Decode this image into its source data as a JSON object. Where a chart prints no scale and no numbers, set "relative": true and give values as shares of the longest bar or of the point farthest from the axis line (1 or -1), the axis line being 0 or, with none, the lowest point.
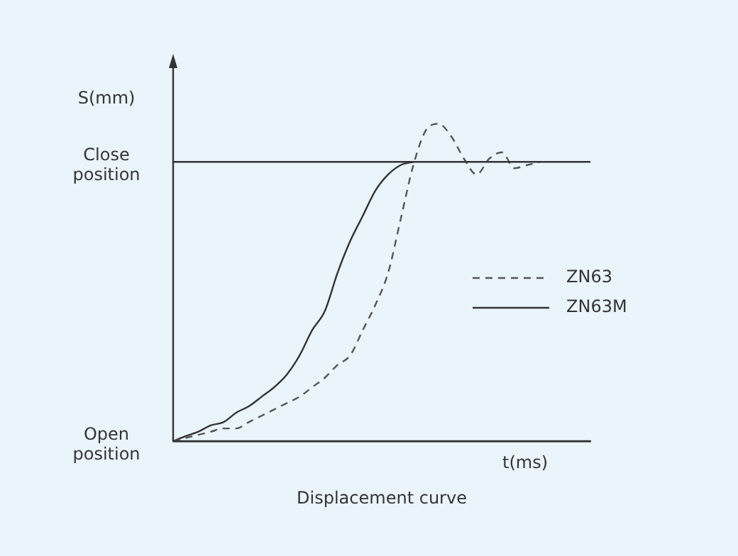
{
  "chart_data": {
    "type": "line",
    "title": "Displacement curve",
    "xlabel": "t(ms)",
    "ylabel": "S(mm)",
    "relative": true,
    "grid": false,
    "legend": "right",
    "marker": "none",
    "categories": [
      null,
      null,
      null,
      null,
      null,
      null,
      null,
      null,
      null,
      null,
      null,
      null,
      null,
      null,
      null,
      null,
      null,
      null,
      null,
      null,
      null,
      null,
      null,
      null,
      null,
      null,
      null,
      null,
      null,
      null,
      null,
      null,
      null,
      null
    ],
    "ref_lines": [
      {
        "axis": "y",
        "value": 0.88,
        "label": "Close position",
        "color": "#333333"
      },
      {
        "axis": "y",
        "value": 0,
        "label": "Open position",
        "color": "#333333"
      }
    ],
    "series": [
      {
        "name": "ZN63",
        "color": "#555555",
        "line_style": "dashed",
        "values": [
          0,
          0.01,
          0.02,
          0.03,
          0.04,
          0.04,
          0.06,
          0.08,
          0.1,
          0.12,
          0.14,
          0.17,
          0.2,
          0.24,
          0.27,
          0.35,
          0.43,
          0.53,
          0.7,
          0.87,
          0.98,
          1,
          0.96,
          0.89,
          0.84,
          0.89,
          0.91,
          0.86,
          0.87,
          0.88,
          null,
          null,
          null,
          null
        ]
      },
      {
        "name": "ZN63M",
        "color": "#333333",
        "line_style": "solid",
        "values": [
          0,
          0.016,
          0.03,
          0.05,
          0.06,
          0.09,
          0.11,
          0.14,
          0.17,
          0.21,
          0.27,
          0.35,
          0.41,
          0.53,
          0.63,
          0.71,
          0.79,
          0.84,
          0.87,
          0.88,
          null,
          null,
          null,
          null,
          null,
          null,
          null,
          null,
          null,
          null,
          null,
          null,
          null,
          null
        ]
      }
    ]
  }
}
